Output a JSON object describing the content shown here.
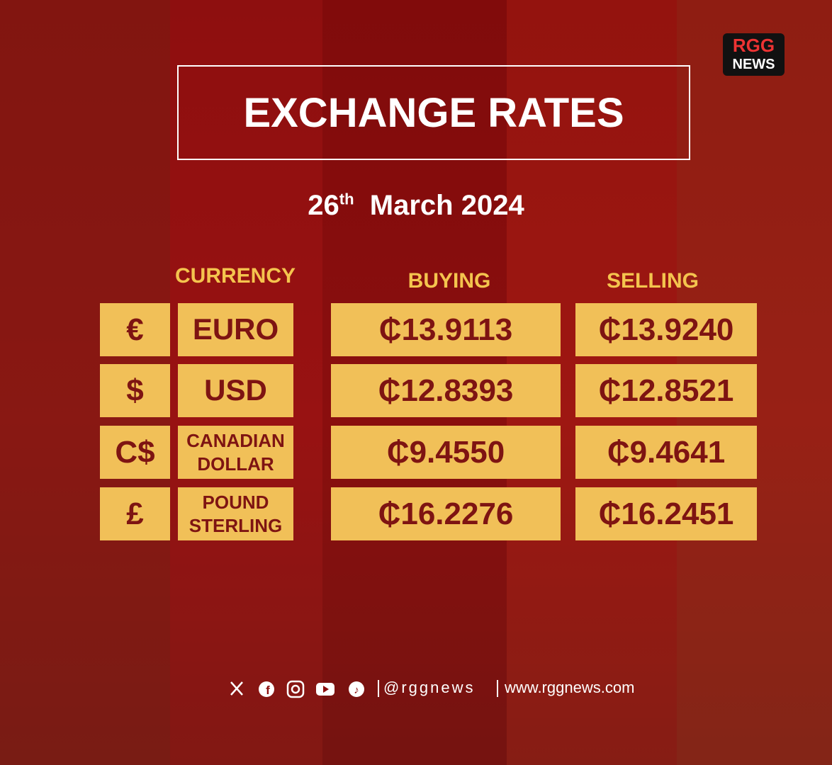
{
  "logo": {
    "top": "RGG",
    "bottom": "NEWS"
  },
  "header": {
    "title": "EXCHANGE RATES",
    "date_day": "26",
    "date_suffix": "th",
    "date_rest": "March 2024"
  },
  "table": {
    "columns": [
      "CURRENCY",
      "BUYING",
      "SELLING"
    ],
    "rows": [
      {
        "symbol": "€",
        "name": "EURO",
        "buying": "₵13.9113",
        "selling": "₵13.9240"
      },
      {
        "symbol": "$",
        "name": "USD",
        "buying": "₵12.8393",
        "selling": "₵12.8521"
      },
      {
        "symbol": "C$",
        "name": "CANADIAN DOLLAR",
        "buying": "₵9.4550",
        "selling": "₵9.4641"
      },
      {
        "symbol": "£",
        "name": "POUND STERLING",
        "buying": "₵16.2276",
        "selling": "₵16.2451"
      }
    ]
  },
  "footer": {
    "handle": "@rggnews",
    "website": "www.rggnews.com"
  }
}
